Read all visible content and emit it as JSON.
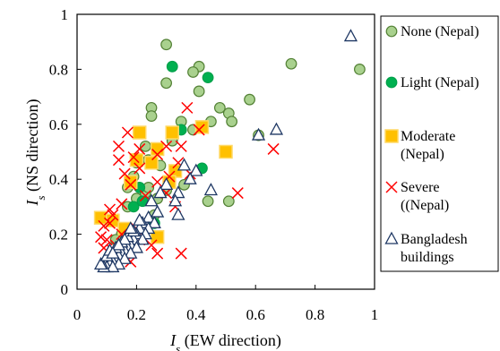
{
  "chart_data": {
    "type": "scatter",
    "xlabel": {
      "symbol": "I",
      "subscript": "s",
      "text": "(EW direction)"
    },
    "ylabel": {
      "symbol": "I",
      "subscript": "s",
      "text": "(NS direction)"
    },
    "xlim": [
      0,
      1
    ],
    "ylim": [
      0,
      1
    ],
    "xticks": [
      "0",
      "0.2",
      "0.4",
      "0.6",
      "0.8",
      "1"
    ],
    "yticks": [
      "0",
      "0.2",
      "0.4",
      "0.6",
      "0.8",
      "1"
    ],
    "grid": false,
    "legend_position": "right",
    "series": [
      {
        "name": "None (Nepal)",
        "label_lines": [
          "None (Nepal)"
        ],
        "marker": "circle",
        "fill": "#a9d18e",
        "stroke": "#538135",
        "points": [
          [
            0.3,
            0.89
          ],
          [
            0.95,
            0.8
          ],
          [
            0.72,
            0.82
          ],
          [
            0.41,
            0.81
          ],
          [
            0.39,
            0.79
          ],
          [
            0.41,
            0.72
          ],
          [
            0.3,
            0.75
          ],
          [
            0.25,
            0.66
          ],
          [
            0.25,
            0.63
          ],
          [
            0.58,
            0.69
          ],
          [
            0.48,
            0.66
          ],
          [
            0.51,
            0.64
          ],
          [
            0.52,
            0.61
          ],
          [
            0.45,
            0.61
          ],
          [
            0.35,
            0.61
          ],
          [
            0.39,
            0.58
          ],
          [
            0.61,
            0.56
          ],
          [
            0.23,
            0.52
          ],
          [
            0.32,
            0.54
          ],
          [
            0.28,
            0.45
          ],
          [
            0.24,
            0.47
          ],
          [
            0.2,
            0.46
          ],
          [
            0.19,
            0.41
          ],
          [
            0.17,
            0.37
          ],
          [
            0.2,
            0.33
          ],
          [
            0.23,
            0.35
          ],
          [
            0.44,
            0.32
          ],
          [
            0.51,
            0.32
          ],
          [
            0.3,
            0.36
          ],
          [
            0.24,
            0.37
          ],
          [
            0.27,
            0.33
          ],
          [
            0.17,
            0.3
          ],
          [
            0.36,
            0.38
          ],
          [
            0.26,
            0.27
          ],
          [
            0.15,
            0.2
          ],
          [
            0.13,
            0.18
          ]
        ]
      },
      {
        "name": "Light (Nepal)",
        "label_lines": [
          "Light (Nepal)"
        ],
        "marker": "circle",
        "fill": "#00b050",
        "stroke": "#00a04a",
        "points": [
          [
            0.32,
            0.81
          ],
          [
            0.44,
            0.77
          ],
          [
            0.35,
            0.58
          ],
          [
            0.42,
            0.44
          ],
          [
            0.21,
            0.37
          ],
          [
            0.22,
            0.32
          ],
          [
            0.26,
            0.24
          ],
          [
            0.19,
            0.3
          ]
        ]
      },
      {
        "name": "Moderate (Nepal)",
        "label_lines": [
          "Moderate",
          "(Nepal)"
        ],
        "marker": "square",
        "fill": "#ffc000",
        "stroke": "#ffd966",
        "points": [
          [
            0.21,
            0.57
          ],
          [
            0.32,
            0.57
          ],
          [
            0.27,
            0.51
          ],
          [
            0.42,
            0.59
          ],
          [
            0.5,
            0.5
          ],
          [
            0.33,
            0.43
          ],
          [
            0.31,
            0.39
          ],
          [
            0.25,
            0.46
          ],
          [
            0.2,
            0.47
          ],
          [
            0.18,
            0.39
          ],
          [
            0.08,
            0.26
          ],
          [
            0.12,
            0.25
          ],
          [
            0.27,
            0.19
          ],
          [
            0.16,
            0.22
          ]
        ]
      },
      {
        "name": "Severe ((Nepal)",
        "label_lines": [
          "Severe",
          "((Nepal)"
        ],
        "marker": "x",
        "fill": "none",
        "stroke": "#ff0000",
        "points": [
          [
            0.37,
            0.66
          ],
          [
            0.17,
            0.57
          ],
          [
            0.14,
            0.52
          ],
          [
            0.21,
            0.51
          ],
          [
            0.14,
            0.47
          ],
          [
            0.27,
            0.49
          ],
          [
            0.3,
            0.52
          ],
          [
            0.19,
            0.48
          ],
          [
            0.41,
            0.58
          ],
          [
            0.35,
            0.52
          ],
          [
            0.16,
            0.42
          ],
          [
            0.21,
            0.44
          ],
          [
            0.34,
            0.46
          ],
          [
            0.38,
            0.42
          ],
          [
            0.18,
            0.38
          ],
          [
            0.27,
            0.39
          ],
          [
            0.31,
            0.41
          ],
          [
            0.23,
            0.34
          ],
          [
            0.15,
            0.31
          ],
          [
            0.3,
            0.35
          ],
          [
            0.11,
            0.29
          ],
          [
            0.12,
            0.27
          ],
          [
            0.09,
            0.23
          ],
          [
            0.11,
            0.24
          ],
          [
            0.66,
            0.51
          ],
          [
            0.54,
            0.35
          ],
          [
            0.2,
            0.22
          ],
          [
            0.15,
            0.2
          ],
          [
            0.1,
            0.18
          ],
          [
            0.13,
            0.16
          ],
          [
            0.12,
            0.14
          ],
          [
            0.16,
            0.13
          ],
          [
            0.18,
            0.1
          ],
          [
            0.27,
            0.13
          ],
          [
            0.09,
            0.15
          ],
          [
            0.35,
            0.13
          ],
          [
            0.11,
            0.11
          ],
          [
            0.21,
            0.18
          ],
          [
            0.25,
            0.16
          ],
          [
            0.33,
            0.3
          ],
          [
            0.08,
            0.19
          ]
        ]
      },
      {
        "name": "Bangladesh buildings",
        "label_lines": [
          "Bangladesh",
          "buildings"
        ],
        "marker": "triangle",
        "fill": "#ffffff",
        "stroke": "#1f3864",
        "points": [
          [
            0.92,
            0.92
          ],
          [
            0.67,
            0.58
          ],
          [
            0.61,
            0.56
          ],
          [
            0.45,
            0.36
          ],
          [
            0.36,
            0.45
          ],
          [
            0.4,
            0.43
          ],
          [
            0.38,
            0.4
          ],
          [
            0.34,
            0.35
          ],
          [
            0.33,
            0.32
          ],
          [
            0.34,
            0.27
          ],
          [
            0.3,
            0.38
          ],
          [
            0.28,
            0.35
          ],
          [
            0.25,
            0.32
          ],
          [
            0.27,
            0.28
          ],
          [
            0.24,
            0.26
          ],
          [
            0.22,
            0.24
          ],
          [
            0.26,
            0.24
          ],
          [
            0.24,
            0.22
          ],
          [
            0.21,
            0.22
          ],
          [
            0.23,
            0.2
          ],
          [
            0.2,
            0.2
          ],
          [
            0.22,
            0.18
          ],
          [
            0.19,
            0.18
          ],
          [
            0.18,
            0.16
          ],
          [
            0.2,
            0.15
          ],
          [
            0.17,
            0.15
          ],
          [
            0.16,
            0.14
          ],
          [
            0.18,
            0.13
          ],
          [
            0.15,
            0.13
          ],
          [
            0.14,
            0.12
          ],
          [
            0.16,
            0.11
          ],
          [
            0.13,
            0.11
          ],
          [
            0.12,
            0.1
          ],
          [
            0.14,
            0.09
          ],
          [
            0.11,
            0.09
          ],
          [
            0.1,
            0.08
          ],
          [
            0.12,
            0.08
          ],
          [
            0.09,
            0.08
          ],
          [
            0.08,
            0.09
          ],
          [
            0.1,
            0.12
          ],
          [
            0.11,
            0.14
          ],
          [
            0.13,
            0.15
          ],
          [
            0.15,
            0.17
          ],
          [
            0.17,
            0.19
          ],
          [
            0.19,
            0.21
          ],
          [
            0.21,
            0.25
          ],
          [
            0.18,
            0.22
          ],
          [
            0.16,
            0.18
          ],
          [
            0.14,
            0.16
          ],
          [
            0.12,
            0.13
          ]
        ]
      }
    ]
  }
}
